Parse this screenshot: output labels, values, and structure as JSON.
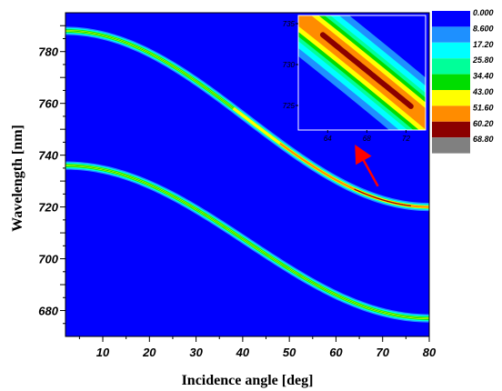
{
  "chart_data": {
    "type": "heatmap",
    "main": {
      "x_range": [
        2,
        80
      ],
      "y_range": [
        670,
        795
      ],
      "x_ticks": [
        10,
        20,
        30,
        40,
        50,
        60,
        70,
        80
      ],
      "y_ticks": [
        680,
        700,
        720,
        740,
        760,
        780
      ],
      "xlabel": "Incidence angle",
      "xunit": "[deg]",
      "ylabel": "Wavelength",
      "yunit": "[nm]",
      "background_color": "#0000ff",
      "bands": [
        {
          "y_at_start": 788,
          "y_at_end": 720,
          "width_nm": 3.2,
          "peak_from_deg": 38,
          "peak_to_deg": 80
        },
        {
          "y_at_start": 736,
          "y_at_end": 677,
          "width_nm": 3.2,
          "peak_from_deg": null,
          "peak_to_deg": null
        }
      ]
    },
    "inset": {
      "x_range": [
        61,
        74
      ],
      "y_range": [
        722,
        736
      ],
      "x_ticks": [
        "64",
        "68",
        "72"
      ],
      "y_ticks": [
        "725",
        "730",
        "735"
      ]
    },
    "colorbar": {
      "labels": [
        "0.000",
        "8.600",
        "17.20",
        "25.80",
        "34.40",
        "43.00",
        "51.60",
        "60.20",
        "68.80"
      ],
      "colors": [
        "#0000ff",
        "#1e90ff",
        "#00ffff",
        "#00ff99",
        "#00dd00",
        "#ffff00",
        "#ff8c00",
        "#8b0000",
        "#808080"
      ]
    },
    "annotation": {
      "type": "arrow",
      "color": "#ff0000",
      "from_deg": 69,
      "from_nm": 728,
      "to_deg": 65,
      "to_nm": 741
    }
  }
}
